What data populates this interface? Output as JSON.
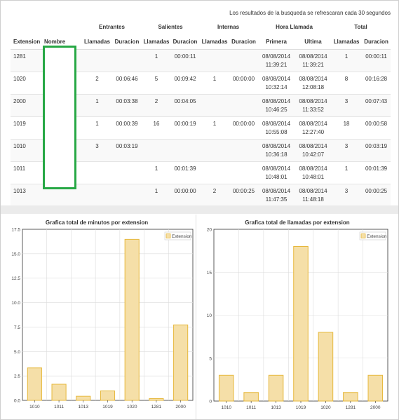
{
  "report": {
    "refresh_note": "Los resultados de la busqueda se refrescaran cada 30 segundos",
    "group_headers": [
      "Entrantes",
      "Salientes",
      "Internas",
      "Hora Llamada",
      "Total"
    ],
    "columns": [
      "Extension",
      "Nombre",
      "Llamadas",
      "Duracion",
      "Llamadas",
      "Duracion",
      "Llamadas",
      "Duracion",
      "Primera",
      "Ultima",
      "Llamadas",
      "Duracion"
    ],
    "rows": [
      {
        "ext": "1281",
        "nombre": "",
        "in_calls": "",
        "in_dur": "",
        "out_calls": "1",
        "out_dur": "00:00:11",
        "int_calls": "",
        "int_dur": "",
        "first_date": "08/08/2014",
        "first_time": "11:39:21",
        "last_date": "08/08/2014",
        "last_time": "11:39:21",
        "total_calls": "1",
        "total_dur": "00:00:11"
      },
      {
        "ext": "1020",
        "nombre": "",
        "in_calls": "2",
        "in_dur": "00:06:46",
        "out_calls": "5",
        "out_dur": "00:09:42",
        "int_calls": "1",
        "int_dur": "00:00:00",
        "first_date": "08/08/2014",
        "first_time": "10:32:14",
        "last_date": "08/08/2014",
        "last_time": "12:08:18",
        "total_calls": "8",
        "total_dur": "00:16:28"
      },
      {
        "ext": "2000",
        "nombre": "",
        "in_calls": "1",
        "in_dur": "00:03:38",
        "out_calls": "2",
        "out_dur": "00:04:05",
        "int_calls": "",
        "int_dur": "",
        "first_date": "08/08/2014",
        "first_time": "10:46:25",
        "last_date": "08/08/2014",
        "last_time": "11:33:52",
        "total_calls": "3",
        "total_dur": "00:07:43"
      },
      {
        "ext": "1019",
        "nombre": "",
        "in_calls": "1",
        "in_dur": "00:00:39",
        "out_calls": "16",
        "out_dur": "00:00:19",
        "int_calls": "1",
        "int_dur": "00:00:00",
        "first_date": "08/08/2014",
        "first_time": "10:55:08",
        "last_date": "08/08/2014",
        "last_time": "12:27:40",
        "total_calls": "18",
        "total_dur": "00:00:58"
      },
      {
        "ext": "1010",
        "nombre": "",
        "in_calls": "3",
        "in_dur": "00:03:19",
        "out_calls": "",
        "out_dur": "",
        "int_calls": "",
        "int_dur": "",
        "first_date": "08/08/2014",
        "first_time": "10:36:18",
        "last_date": "08/08/2014",
        "last_time": "10:42:07",
        "total_calls": "3",
        "total_dur": "00:03:19"
      },
      {
        "ext": "1011",
        "nombre": "",
        "in_calls": "",
        "in_dur": "",
        "out_calls": "1",
        "out_dur": "00:01:39",
        "int_calls": "",
        "int_dur": "",
        "first_date": "08/08/2014",
        "first_time": "10:48:01",
        "last_date": "08/08/2014",
        "last_time": "10:48:01",
        "total_calls": "1",
        "total_dur": "00:01:39"
      },
      {
        "ext": "1013",
        "nombre": "",
        "in_calls": "",
        "in_dur": "",
        "out_calls": "1",
        "out_dur": "00:00:00",
        "int_calls": "2",
        "int_dur": "00:00:25",
        "first_date": "08/08/2014",
        "first_time": "11:47:35",
        "last_date": "08/08/2014",
        "last_time": "11:48:18",
        "total_calls": "3",
        "total_dur": "00:00:25"
      }
    ]
  },
  "colors": {
    "bar_fill": "#f5dfa8",
    "bar_stroke": "#e6b83c",
    "redact_border": "#27a845",
    "grid": "#dcdcdc"
  },
  "chart_data": [
    {
      "type": "bar",
      "title": "Grafica total de minutos por extension",
      "categories": [
        "1010",
        "1011",
        "1013",
        "1019",
        "1020",
        "1281",
        "2000"
      ],
      "series": [
        {
          "name": "Extension",
          "values": [
            3.32,
            1.65,
            0.42,
            0.97,
            16.47,
            0.18,
            7.72
          ]
        }
      ],
      "ylim": [
        0,
        17.5
      ],
      "yticks": [
        "0.0",
        "2.5",
        "5.0",
        "7.5",
        "10.0",
        "12.5",
        "15.0",
        "17.5"
      ],
      "grid": true,
      "legend": "top-right"
    },
    {
      "type": "bar",
      "title": "Grafica total de llamadas por extension",
      "categories": [
        "1010",
        "1011",
        "1013",
        "1019",
        "1020",
        "1281",
        "2000"
      ],
      "series": [
        {
          "name": "Extension",
          "values": [
            3,
            1,
            3,
            18,
            8,
            1,
            3
          ]
        }
      ],
      "ylim": [
        0,
        20
      ],
      "yticks": [
        "0",
        "5",
        "10",
        "15",
        "20"
      ],
      "grid": true,
      "legend": "top-right"
    }
  ]
}
